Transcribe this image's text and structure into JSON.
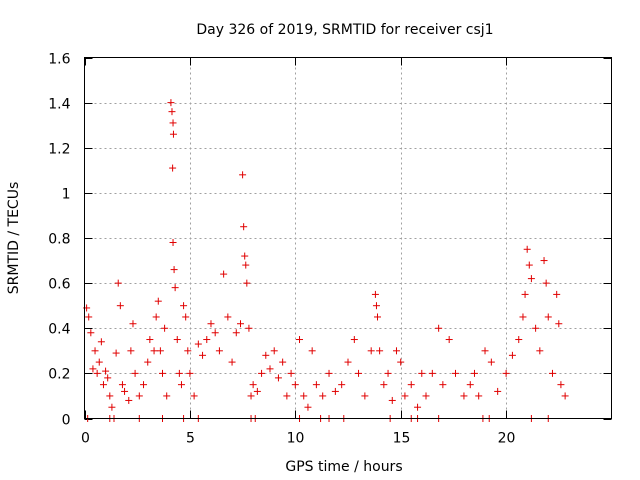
{
  "chart_data": {
    "type": "scatter",
    "title": "Day 326 of 2019, SRMTID for receiver csj1",
    "xlabel": "GPS time / hours",
    "ylabel": "SRMTID / TECUs",
    "xlim": [
      0,
      25
    ],
    "ylim": [
      0,
      1.6
    ],
    "xticks": [
      0,
      5,
      10,
      15,
      20
    ],
    "yticks": [
      0,
      0.2,
      0.4,
      0.6,
      0.8,
      1,
      1.2,
      1.4,
      1.6
    ],
    "xtick_labels": [
      "0",
      "5",
      "10",
      "15",
      "20"
    ],
    "ytick_labels": [
      "0",
      "0.2",
      "0.4",
      "0.6",
      "0.8",
      "1",
      "1.2",
      "1.4",
      "1.6"
    ],
    "grid": true,
    "marker": "+",
    "color": "#e00000",
    "series": [
      {
        "name": "SRMTID",
        "points": [
          [
            0.1,
            0.49
          ],
          [
            0.2,
            0.45
          ],
          [
            0.3,
            0.38
          ],
          [
            0.4,
            0.22
          ],
          [
            0.5,
            0.3
          ],
          [
            0.6,
            0.2
          ],
          [
            0.7,
            0.25
          ],
          [
            0.8,
            0.34
          ],
          [
            0.9,
            0.15
          ],
          [
            1.0,
            0.21
          ],
          [
            1.1,
            0.18
          ],
          [
            1.2,
            0.1
          ],
          [
            1.3,
            0.05
          ],
          [
            1.5,
            0.29
          ],
          [
            1.6,
            0.6
          ],
          [
            1.7,
            0.5
          ],
          [
            1.8,
            0.15
          ],
          [
            1.9,
            0.12
          ],
          [
            2.1,
            0.08
          ],
          [
            2.2,
            0.3
          ],
          [
            2.3,
            0.42
          ],
          [
            2.4,
            0.2
          ],
          [
            2.6,
            0.1
          ],
          [
            2.8,
            0.15
          ],
          [
            3.0,
            0.25
          ],
          [
            3.1,
            0.35
          ],
          [
            3.3,
            0.3
          ],
          [
            3.4,
            0.45
          ],
          [
            3.5,
            0.52
          ],
          [
            3.6,
            0.3
          ],
          [
            3.7,
            0.2
          ],
          [
            3.8,
            0.4
          ],
          [
            3.9,
            0.1
          ],
          [
            4.1,
            1.4
          ],
          [
            4.15,
            1.36
          ],
          [
            4.2,
            1.31
          ],
          [
            4.22,
            1.26
          ],
          [
            4.18,
            1.11
          ],
          [
            4.2,
            0.78
          ],
          [
            4.25,
            0.66
          ],
          [
            4.3,
            0.58
          ],
          [
            4.4,
            0.35
          ],
          [
            4.5,
            0.2
          ],
          [
            4.6,
            0.15
          ],
          [
            4.7,
            0.5
          ],
          [
            4.8,
            0.45
          ],
          [
            4.9,
            0.3
          ],
          [
            5.0,
            0.2
          ],
          [
            5.2,
            0.1
          ],
          [
            5.4,
            0.33
          ],
          [
            5.6,
            0.28
          ],
          [
            5.8,
            0.35
          ],
          [
            6.0,
            0.42
          ],
          [
            6.2,
            0.38
          ],
          [
            6.4,
            0.3
          ],
          [
            6.6,
            0.64
          ],
          [
            6.8,
            0.45
          ],
          [
            7.0,
            0.25
          ],
          [
            7.2,
            0.38
          ],
          [
            7.4,
            0.42
          ],
          [
            7.5,
            1.08
          ],
          [
            7.55,
            0.85
          ],
          [
            7.6,
            0.72
          ],
          [
            7.65,
            0.68
          ],
          [
            7.7,
            0.6
          ],
          [
            7.8,
            0.4
          ],
          [
            7.9,
            0.1
          ],
          [
            8.0,
            0.15
          ],
          [
            8.2,
            0.12
          ],
          [
            8.4,
            0.2
          ],
          [
            8.6,
            0.28
          ],
          [
            8.8,
            0.22
          ],
          [
            9.0,
            0.3
          ],
          [
            9.2,
            0.18
          ],
          [
            9.4,
            0.25
          ],
          [
            9.6,
            0.1
          ],
          [
            9.8,
            0.2
          ],
          [
            10.0,
            0.15
          ],
          [
            10.2,
            0.35
          ],
          [
            10.4,
            0.1
          ],
          [
            10.6,
            0.05
          ],
          [
            10.8,
            0.3
          ],
          [
            11.0,
            0.15
          ],
          [
            11.3,
            0.1
          ],
          [
            11.6,
            0.2
          ],
          [
            11.9,
            0.12
          ],
          [
            12.2,
            0.15
          ],
          [
            12.5,
            0.25
          ],
          [
            12.8,
            0.35
          ],
          [
            13.0,
            0.2
          ],
          [
            13.3,
            0.1
          ],
          [
            13.6,
            0.3
          ],
          [
            13.8,
            0.55
          ],
          [
            13.85,
            0.5
          ],
          [
            13.9,
            0.45
          ],
          [
            14.0,
            0.3
          ],
          [
            14.2,
            0.15
          ],
          [
            14.4,
            0.2
          ],
          [
            14.6,
            0.08
          ],
          [
            14.8,
            0.3
          ],
          [
            15.0,
            0.25
          ],
          [
            15.2,
            0.1
          ],
          [
            15.5,
            0.15
          ],
          [
            15.8,
            0.05
          ],
          [
            16.0,
            0.2
          ],
          [
            16.2,
            0.1
          ],
          [
            16.5,
            0.2
          ],
          [
            16.8,
            0.4
          ],
          [
            17.0,
            0.15
          ],
          [
            17.3,
            0.35
          ],
          [
            17.6,
            0.2
          ],
          [
            18.0,
            0.1
          ],
          [
            18.3,
            0.15
          ],
          [
            18.5,
            0.2
          ],
          [
            18.7,
            0.1
          ],
          [
            19.0,
            0.3
          ],
          [
            19.3,
            0.25
          ],
          [
            19.6,
            0.12
          ],
          [
            20.0,
            0.2
          ],
          [
            20.3,
            0.28
          ],
          [
            20.6,
            0.35
          ],
          [
            20.8,
            0.45
          ],
          [
            20.9,
            0.55
          ],
          [
            21.0,
            0.75
          ],
          [
            21.1,
            0.68
          ],
          [
            21.2,
            0.62
          ],
          [
            21.4,
            0.4
          ],
          [
            21.6,
            0.3
          ],
          [
            21.8,
            0.7
          ],
          [
            21.9,
            0.6
          ],
          [
            22.0,
            0.45
          ],
          [
            22.2,
            0.2
          ],
          [
            22.4,
            0.55
          ],
          [
            22.5,
            0.42
          ],
          [
            22.6,
            0.15
          ],
          [
            22.8,
            0.1
          ],
          [
            0.15,
            0.0
          ],
          [
            1.2,
            0.0
          ],
          [
            1.4,
            0.0
          ],
          [
            2.6,
            0.0
          ],
          [
            3.7,
            0.0
          ],
          [
            4.7,
            0.0
          ],
          [
            5.4,
            0.0
          ],
          [
            7.9,
            0.0
          ],
          [
            8.1,
            0.0
          ],
          [
            10.2,
            0.0
          ],
          [
            11.2,
            0.0
          ],
          [
            11.6,
            0.0
          ],
          [
            12.3,
            0.0
          ],
          [
            14.5,
            0.0
          ],
          [
            15.5,
            0.0
          ],
          [
            15.8,
            0.0
          ],
          [
            16.8,
            0.0
          ],
          [
            18.9,
            0.0
          ],
          [
            19.2,
            0.0
          ],
          [
            21.2,
            0.0
          ],
          [
            22.0,
            0.0
          ]
        ]
      }
    ]
  }
}
